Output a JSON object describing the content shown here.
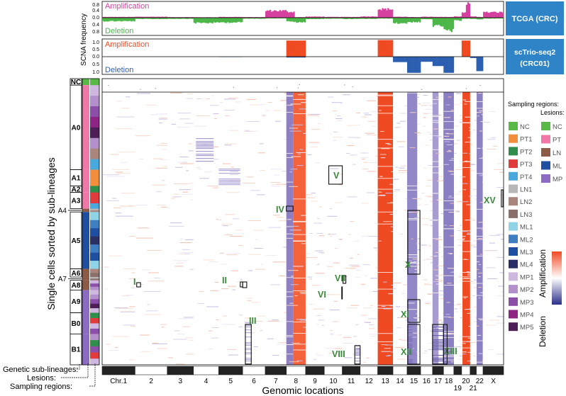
{
  "chart_data": {
    "type": "heatmap",
    "top_tracks": [
      {
        "label": "TCGA (CRC)",
        "amp_name": "Amplification",
        "del_name": "Deletion",
        "amp_color": "#d6409f",
        "del_color": "#4cb648",
        "amp_ticks": [
          "0.8",
          "0.4",
          "0.0"
        ],
        "del_ticks": [
          "0.4",
          "0.8"
        ]
      },
      {
        "label_line1": "scTrio-seq2",
        "label_line2": "(CRC01)",
        "amp_name": "Amplification",
        "del_name": "Deletion",
        "amp_color": "#f04a23",
        "del_color": "#2c5fb0",
        "amp_ticks": [
          "1.0",
          "0.5",
          "0.0"
        ],
        "del_ticks": [
          "0.5",
          "1.0"
        ]
      }
    ],
    "track_ylabel": "SCNA frequency",
    "label_box_color": "#2f84c7",
    "chromosomes": [
      "Chr.1",
      "2",
      "3",
      "4",
      "5",
      "6",
      "7",
      "8",
      "9",
      "10",
      "11",
      "12",
      "13",
      "14",
      "15",
      "16",
      "17",
      "18",
      "19",
      "20",
      "21",
      "22",
      "X"
    ],
    "chromosome_sizes": [
      249,
      243,
      198,
      191,
      181,
      171,
      159,
      146,
      141,
      136,
      135,
      133,
      115,
      107,
      102,
      90,
      83,
      78,
      59,
      64,
      47,
      51,
      155
    ],
    "xlabel": "Genomic locations",
    "ylabel": "Single cells sorted by sub-lineages",
    "sublineages": [
      "NC",
      "A0",
      "A1",
      "A2",
      "A3",
      "A4",
      "A5",
      "A6",
      "A7",
      "A8",
      "A9",
      "B0",
      "B1"
    ],
    "sublineage_cell_counts": [
      4,
      52,
      10,
      4,
      10,
      2,
      35,
      5,
      2,
      6,
      14,
      13,
      19
    ],
    "regions": [
      "XV",
      "V",
      "IV",
      "X",
      "I",
      "II",
      "VII",
      "VI",
      "XI",
      "III",
      "XII",
      "XIII",
      "VIII"
    ],
    "legend_sampling_title": "Sampling regions:",
    "sampling_regions": [
      {
        "name": "NC",
        "color": "#58b947"
      },
      {
        "name": "PT1",
        "color": "#f28e3c"
      },
      {
        "name": "PT2",
        "color": "#2f8f4a"
      },
      {
        "name": "PT3",
        "color": "#e23b3b"
      },
      {
        "name": "PT4",
        "color": "#49a9dd"
      },
      {
        "name": "LN1",
        "color": "#b7b7b7"
      },
      {
        "name": "LN2",
        "color": "#a9857c"
      },
      {
        "name": "LN3",
        "color": "#8a6f6a"
      },
      {
        "name": "ML1",
        "color": "#8fd4e6"
      },
      {
        "name": "ML2",
        "color": "#3e7ec1"
      },
      {
        "name": "ML3",
        "color": "#1f4fa0"
      },
      {
        "name": "ML4",
        "color": "#2a2f66"
      },
      {
        "name": "MP1",
        "color": "#cfb8e0"
      },
      {
        "name": "MP2",
        "color": "#b38fcc"
      },
      {
        "name": "MP3",
        "color": "#8c4fa8"
      },
      {
        "name": "MP4",
        "color": "#8e2585"
      },
      {
        "name": "MP5",
        "color": "#4e1f56"
      }
    ],
    "legend_lesions_title": "Lesions:",
    "lesions": [
      {
        "name": "NC",
        "color": "#58b947"
      },
      {
        "name": "PT",
        "color": "#f078a8"
      },
      {
        "name": "LN",
        "color": "#8c5a45"
      },
      {
        "name": "ML",
        "color": "#1f4fa0"
      },
      {
        "name": "MP",
        "color": "#8c6bc2"
      }
    ],
    "colorbar": {
      "high": "Amplification",
      "low": "Deletion",
      "high_color": "#f04a23",
      "mid_color": "#ffffff",
      "low_color": "#2a2f8a"
    },
    "bottom_labels": [
      "Genetic sub-lineages:",
      "Lesions:",
      "Sampling regions:"
    ]
  }
}
